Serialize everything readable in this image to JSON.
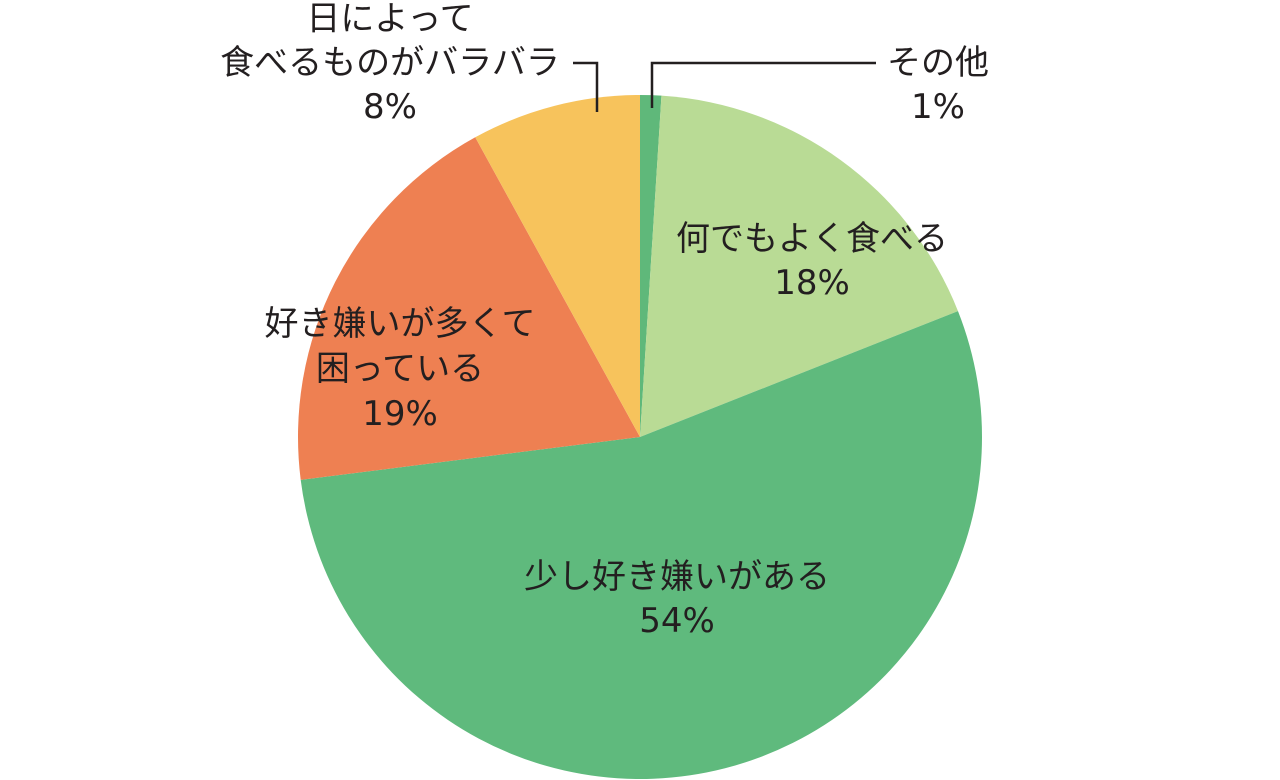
{
  "chart_data": {
    "type": "pie",
    "slices": [
      {
        "name": "その他",
        "value": 1,
        "label": "1%",
        "color": "#5fb87a"
      },
      {
        "name": "何でもよく食べる",
        "value": 18,
        "label": "18%",
        "color": "#b9db95"
      },
      {
        "name": "少し好き嫌いがある",
        "value": 54,
        "label": "54%",
        "color": "#5fba7d"
      },
      {
        "name": "好き嫌いが多くて困っている",
        "name_lines": [
          "好き嫌いが多くて",
          "困っている"
        ],
        "value": 19,
        "label": "19%",
        "color": "#ee8052"
      },
      {
        "name": "日によって食べるものがバラバラ",
        "name_lines": [
          "日によって",
          "食べるものがバラバラ"
        ],
        "value": 8,
        "label": "8%",
        "color": "#f7c35c"
      }
    ]
  }
}
